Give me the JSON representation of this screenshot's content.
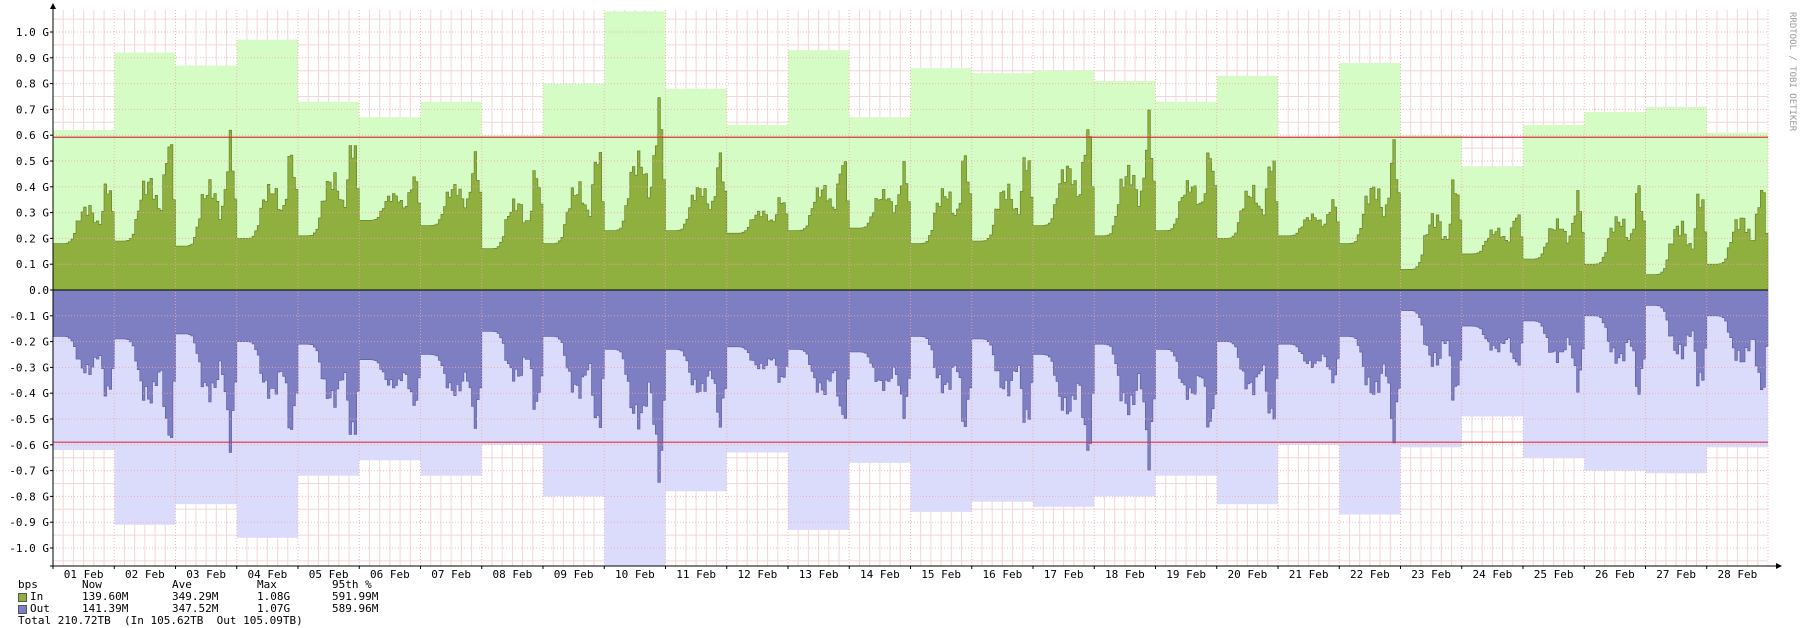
{
  "chart_data": {
    "type": "area",
    "y_unit": "bps",
    "x_ticks": [
      "01 Feb",
      "02 Feb",
      "03 Feb",
      "04 Feb",
      "05 Feb",
      "06 Feb",
      "07 Feb",
      "08 Feb",
      "09 Feb",
      "10 Feb",
      "11 Feb",
      "12 Feb",
      "13 Feb",
      "14 Feb",
      "15 Feb",
      "16 Feb",
      "17 Feb",
      "18 Feb",
      "19 Feb",
      "20 Feb",
      "21 Feb",
      "22 Feb",
      "23 Feb",
      "24 Feb",
      "25 Feb",
      "26 Feb",
      "27 Feb",
      "28 Feb"
    ],
    "y_ticks": [
      "1.0 G",
      "0.9 G",
      "0.8 G",
      "0.7 G",
      "0.6 G",
      "0.5 G",
      "0.4 G",
      "0.3 G",
      "0.2 G",
      "0.1 G",
      "0.0",
      "-0.1 G",
      "-0.2 G",
      "-0.3 G",
      "-0.4 G",
      "-0.5 G",
      "-0.6 G",
      "-0.7 G",
      "-0.8 G",
      "-0.9 G",
      "-1.0 G"
    ],
    "ylim": [
      -1.08,
      1.08
    ],
    "grid": true,
    "side_label": "RRDTOOL / TOBI OETIKER",
    "percentile_95": {
      "in": 0.59199,
      "out": 0.58996
    },
    "series": [
      {
        "name": "In",
        "color": "#8faf3f",
        "daily_max": [
          0.62,
          0.92,
          0.87,
          0.97,
          0.73,
          0.67,
          0.73,
          0.6,
          0.8,
          1.08,
          0.78,
          0.64,
          0.93,
          0.67,
          0.86,
          0.84,
          0.85,
          0.81,
          0.73,
          0.83,
          0.59,
          0.88,
          0.6,
          0.48,
          0.64,
          0.69,
          0.71,
          0.61
        ],
        "daily_low": [
          0.18,
          0.19,
          0.17,
          0.2,
          0.21,
          0.27,
          0.25,
          0.16,
          0.18,
          0.23,
          0.23,
          0.22,
          0.23,
          0.24,
          0.18,
          0.19,
          0.25,
          0.21,
          0.23,
          0.2,
          0.21,
          0.18,
          0.08,
          0.14,
          0.12,
          0.1,
          0.06,
          0.1
        ],
        "daily_peak": [
          0.45,
          0.64,
          0.62,
          0.58,
          0.64,
          0.46,
          0.54,
          0.51,
          0.6,
          0.77,
          0.55,
          0.38,
          0.55,
          0.5,
          0.57,
          0.58,
          0.68,
          0.7,
          0.58,
          0.56,
          0.36,
          0.6,
          0.48,
          0.32,
          0.39,
          0.44,
          0.43,
          0.44
        ]
      },
      {
        "name": "Out",
        "color": "#7e7ec2",
        "daily_max": [
          0.62,
          0.91,
          0.83,
          0.96,
          0.72,
          0.66,
          0.72,
          0.6,
          0.8,
          1.07,
          0.78,
          0.63,
          0.93,
          0.67,
          0.86,
          0.82,
          0.84,
          0.8,
          0.72,
          0.83,
          0.6,
          0.87,
          0.61,
          0.49,
          0.65,
          0.7,
          0.71,
          0.61
        ],
        "daily_low": [
          0.18,
          0.19,
          0.17,
          0.2,
          0.21,
          0.27,
          0.25,
          0.16,
          0.18,
          0.23,
          0.23,
          0.22,
          0.23,
          0.24,
          0.18,
          0.19,
          0.25,
          0.21,
          0.23,
          0.2,
          0.21,
          0.18,
          0.08,
          0.14,
          0.12,
          0.1,
          0.06,
          0.1
        ],
        "daily_peak": [
          0.45,
          0.65,
          0.63,
          0.6,
          0.64,
          0.47,
          0.54,
          0.51,
          0.6,
          0.77,
          0.55,
          0.38,
          0.55,
          0.5,
          0.58,
          0.58,
          0.68,
          0.7,
          0.58,
          0.56,
          0.37,
          0.61,
          0.48,
          0.32,
          0.4,
          0.44,
          0.43,
          0.44
        ]
      }
    ]
  },
  "legend": {
    "header": {
      "label": "bps",
      "now": "Now",
      "ave": "Ave",
      "max": "Max",
      "p95": "95th %"
    },
    "rows": [
      {
        "label": "In",
        "color": "#8faf3f",
        "now": "139.60M",
        "ave": "349.29M",
        "max": "1.08G",
        "p95": "591.99M"
      },
      {
        "label": "Out",
        "color": "#7e7ec2",
        "now": "141.39M",
        "ave": "347.52M",
        "max": "1.07G",
        "p95": "589.96M"
      }
    ],
    "total": "Total 210.72TB  (In 105.62TB  Out 105.09TB)"
  }
}
